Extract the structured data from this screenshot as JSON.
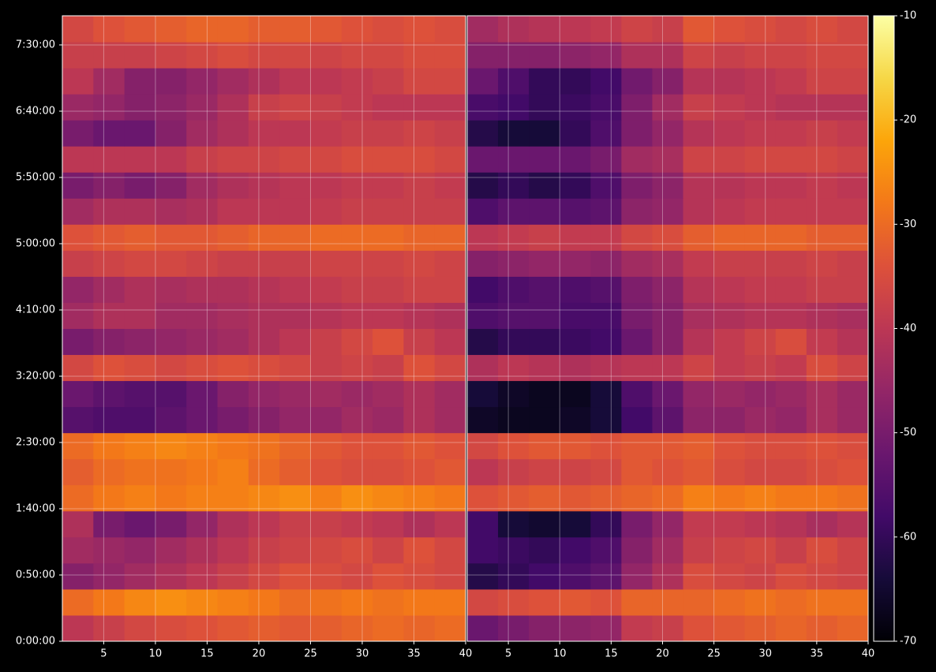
{
  "chart_data": {
    "type": "heatmap",
    "colormap": "inferno",
    "grid": true,
    "xlim": [
      1,
      40
    ],
    "xticks": [
      5,
      10,
      15,
      20,
      25,
      30,
      35,
      40
    ],
    "ylim": [
      0,
      28320
    ],
    "yticks": [
      {
        "value": 0,
        "label": "0:00:00"
      },
      {
        "value": 3000,
        "label": "0:50:00"
      },
      {
        "value": 6000,
        "label": "1:40:00"
      },
      {
        "value": 9000,
        "label": "2:30:00"
      },
      {
        "value": 12000,
        "label": "3:20:00"
      },
      {
        "value": 15000,
        "label": "4:10:00"
      },
      {
        "value": 18000,
        "label": "5:00:00"
      },
      {
        "value": 21000,
        "label": "5:50:00"
      },
      {
        "value": 24000,
        "label": "6:40:00"
      },
      {
        "value": 27000,
        "label": "7:30:00"
      }
    ],
    "colorbar": {
      "lim": [
        -70,
        -10
      ],
      "ticks": [
        -70,
        -60,
        -50,
        -40,
        -30,
        -20,
        -10
      ]
    },
    "x": [
      2.5,
      5.5,
      8.5,
      11.5,
      14.5,
      17.5,
      20.5,
      23.5,
      26.5,
      29.5,
      32.5,
      35.5,
      38.5
    ],
    "y": [
      590,
      1770,
      2950,
      4130,
      5310,
      6490,
      7670,
      8850,
      10030,
      11210,
      12390,
      13570,
      14750,
      15930,
      17110,
      18290,
      19470,
      20650,
      21830,
      23010,
      24190,
      25370,
      26550,
      27730
    ],
    "panels": [
      {
        "values": [
          [
            -40,
            -38,
            -36,
            -35,
            -34,
            -33,
            -32,
            -33,
            -32,
            -31,
            -30,
            -31,
            -30
          ],
          [
            -30,
            -28,
            -26,
            -25,
            -26,
            -27,
            -28,
            -30,
            -29,
            -28,
            -29,
            -28,
            -28
          ],
          [
            -48,
            -46,
            -44,
            -42,
            -40,
            -38,
            -36,
            -34,
            -35,
            -36,
            -34,
            -35,
            -36
          ],
          [
            -44,
            -45,
            -46,
            -44,
            -42,
            -40,
            -38,
            -37,
            -36,
            -35,
            -37,
            -34,
            -36
          ],
          [
            -42,
            -50,
            -52,
            -50,
            -46,
            -42,
            -40,
            -38,
            -38,
            -39,
            -40,
            -42,
            -40
          ],
          [
            -30,
            -28,
            -27,
            -28,
            -27,
            -27,
            -26,
            -25,
            -27,
            -25,
            -26,
            -27,
            -28
          ],
          [
            -32,
            -30,
            -29,
            -29,
            -28,
            -27,
            -30,
            -32,
            -34,
            -35,
            -35,
            -34,
            -33
          ],
          [
            -30,
            -28,
            -27,
            -26,
            -27,
            -28,
            -29,
            -31,
            -33,
            -34,
            -34,
            -33,
            -34
          ],
          [
            -55,
            -56,
            -56,
            -54,
            -52,
            -50,
            -48,
            -46,
            -46,
            -44,
            -45,
            -42,
            -44
          ],
          [
            -52,
            -54,
            -55,
            -55,
            -52,
            -48,
            -46,
            -45,
            -44,
            -45,
            -44,
            -42,
            -44
          ],
          [
            -36,
            -34,
            -35,
            -36,
            -35,
            -34,
            -35,
            -36,
            -38,
            -37,
            -38,
            -34,
            -36
          ],
          [
            -50,
            -48,
            -47,
            -46,
            -45,
            -44,
            -42,
            -40,
            -38,
            -36,
            -34,
            -38,
            -40
          ],
          [
            -44,
            -42,
            -42,
            -44,
            -44,
            -43,
            -42,
            -42,
            -41,
            -40,
            -40,
            -41,
            -42
          ],
          [
            -46,
            -44,
            -42,
            -43,
            -42,
            -42,
            -41,
            -40,
            -39,
            -38,
            -38,
            -37,
            -37
          ],
          [
            -38,
            -37,
            -36,
            -36,
            -37,
            -38,
            -38,
            -38,
            -37,
            -37,
            -37,
            -36,
            -37
          ],
          [
            -34,
            -33,
            -32,
            -33,
            -33,
            -32,
            -31,
            -31,
            -30,
            -30,
            -30,
            -31,
            -31
          ],
          [
            -44,
            -42,
            -42,
            -43,
            -42,
            -40,
            -40,
            -40,
            -39,
            -38,
            -38,
            -38,
            -38
          ],
          [
            -50,
            -48,
            -50,
            -48,
            -44,
            -42,
            -41,
            -40,
            -40,
            -39,
            -39,
            -38,
            -39
          ],
          [
            -40,
            -40,
            -40,
            -40,
            -38,
            -37,
            -37,
            -36,
            -36,
            -35,
            -35,
            -35,
            -36
          ],
          [
            -50,
            -52,
            -52,
            -48,
            -44,
            -42,
            -40,
            -40,
            -39,
            -38,
            -38,
            -37,
            -38
          ],
          [
            -45,
            -46,
            -48,
            -47,
            -45,
            -42,
            -38,
            -37,
            -38,
            -39,
            -40,
            -40,
            -40
          ],
          [
            -40,
            -44,
            -48,
            -48,
            -46,
            -44,
            -42,
            -40,
            -40,
            -39,
            -38,
            -36,
            -36
          ],
          [
            -38,
            -38,
            -38,
            -37,
            -36,
            -35,
            -36,
            -36,
            -37,
            -36,
            -36,
            -35,
            -35
          ],
          [
            -36,
            -34,
            -33,
            -32,
            -31,
            -31,
            -32,
            -32,
            -33,
            -34,
            -35,
            -34,
            -35
          ]
        ]
      },
      {
        "values": [
          [
            -52,
            -50,
            -48,
            -47,
            -46,
            -39,
            -38,
            -34,
            -33,
            -32,
            -31,
            -32,
            -31
          ],
          [
            -36,
            -35,
            -34,
            -33,
            -34,
            -31,
            -31,
            -31,
            -30,
            -29,
            -30,
            -29,
            -29
          ],
          [
            -62,
            -60,
            -58,
            -56,
            -54,
            -46,
            -42,
            -35,
            -36,
            -37,
            -35,
            -36,
            -37
          ],
          [
            -58,
            -59,
            -60,
            -58,
            -56,
            -48,
            -44,
            -38,
            -37,
            -36,
            -38,
            -35,
            -37
          ],
          [
            -58,
            -64,
            -65,
            -64,
            -60,
            -50,
            -46,
            -39,
            -39,
            -40,
            -41,
            -43,
            -41
          ],
          [
            -34,
            -33,
            -32,
            -33,
            -32,
            -31,
            -30,
            -27,
            -28,
            -27,
            -28,
            -28,
            -29
          ],
          [
            -40,
            -38,
            -37,
            -37,
            -36,
            -33,
            -34,
            -33,
            -35,
            -36,
            -36,
            -35,
            -34
          ],
          [
            -36,
            -34,
            -33,
            -33,
            -34,
            -33,
            -33,
            -32,
            -34,
            -35,
            -35,
            -34,
            -35
          ],
          [
            -66,
            -67,
            -67,
            -66,
            -64,
            -58,
            -54,
            -47,
            -47,
            -45,
            -46,
            -43,
            -45
          ],
          [
            -64,
            -66,
            -67,
            -67,
            -64,
            -56,
            -52,
            -46,
            -45,
            -46,
            -45,
            -43,
            -45
          ],
          [
            -42,
            -40,
            -41,
            -42,
            -41,
            -40,
            -40,
            -37,
            -39,
            -38,
            -39,
            -35,
            -37
          ],
          [
            -62,
            -60,
            -60,
            -59,
            -58,
            -52,
            -48,
            -41,
            -39,
            -37,
            -35,
            -39,
            -41
          ],
          [
            -56,
            -55,
            -55,
            -57,
            -57,
            -50,
            -48,
            -43,
            -42,
            -41,
            -41,
            -42,
            -43
          ],
          [
            -58,
            -56,
            -55,
            -56,
            -55,
            -49,
            -47,
            -41,
            -40,
            -39,
            -39,
            -38,
            -38
          ],
          [
            -48,
            -47,
            -46,
            -46,
            -47,
            -44,
            -43,
            -39,
            -38,
            -38,
            -38,
            -37,
            -38
          ],
          [
            -40,
            -39,
            -38,
            -39,
            -39,
            -36,
            -35,
            -32,
            -31,
            -31,
            -31,
            -32,
            -32
          ],
          [
            -56,
            -54,
            -54,
            -55,
            -54,
            -47,
            -46,
            -41,
            -40,
            -39,
            -39,
            -39,
            -39
          ],
          [
            -62,
            -60,
            -62,
            -60,
            -56,
            -49,
            -47,
            -41,
            -41,
            -40,
            -40,
            -39,
            -40
          ],
          [
            -52,
            -52,
            -52,
            -52,
            -50,
            -44,
            -43,
            -37,
            -37,
            -36,
            -36,
            -36,
            -37
          ],
          [
            -62,
            -64,
            -64,
            -60,
            -56,
            -49,
            -46,
            -41,
            -40,
            -39,
            -39,
            -38,
            -39
          ],
          [
            -57,
            -58,
            -60,
            -59,
            -57,
            -49,
            -44,
            -38,
            -39,
            -40,
            -41,
            -41,
            -41
          ],
          [
            -52,
            -56,
            -60,
            -60,
            -58,
            -51,
            -48,
            -41,
            -41,
            -40,
            -39,
            -37,
            -37
          ],
          [
            -48,
            -48,
            -48,
            -47,
            -46,
            -42,
            -42,
            -37,
            -38,
            -37,
            -37,
            -36,
            -36
          ],
          [
            -44,
            -42,
            -41,
            -40,
            -39,
            -37,
            -38,
            -33,
            -34,
            -35,
            -36,
            -35,
            -36
          ]
        ]
      }
    ]
  }
}
